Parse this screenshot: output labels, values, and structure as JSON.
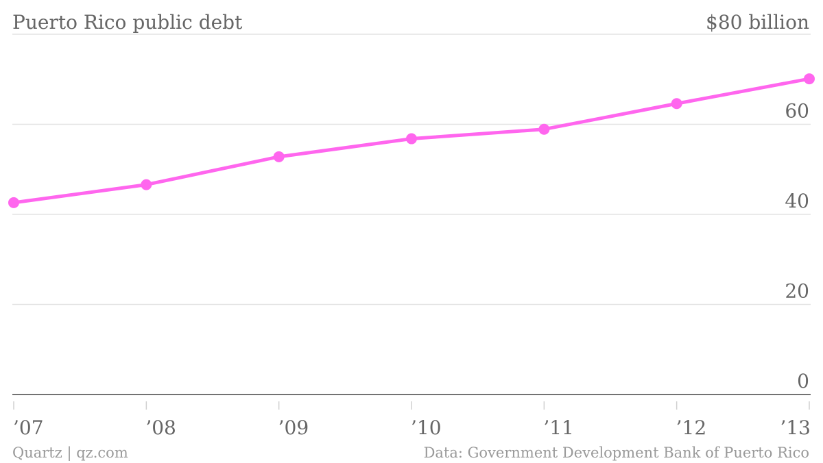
{
  "chart_data": {
    "type": "line",
    "title": "Puerto Rico public debt",
    "unit_label": "$80 billion",
    "categories": [
      "’07",
      "’08",
      "’09",
      "’10",
      "’11",
      "’12",
      "’13"
    ],
    "series": [
      {
        "values": [
          42.6,
          46.6,
          52.8,
          56.8,
          58.9,
          64.6,
          70.1
        ],
        "color": "#ff66ee"
      }
    ],
    "y_ticks": [
      {
        "value": 0,
        "label": "0"
      },
      {
        "value": 20,
        "label": "20"
      },
      {
        "value": 40,
        "label": "40"
      },
      {
        "value": 60,
        "label": "60"
      }
    ],
    "ylim": [
      0,
      80
    ],
    "grid": true,
    "y_axis_side": "right"
  },
  "footer": {
    "credit": "Quartz | qz.com",
    "source": "Data: Government Development Bank of Puerto Rico"
  }
}
